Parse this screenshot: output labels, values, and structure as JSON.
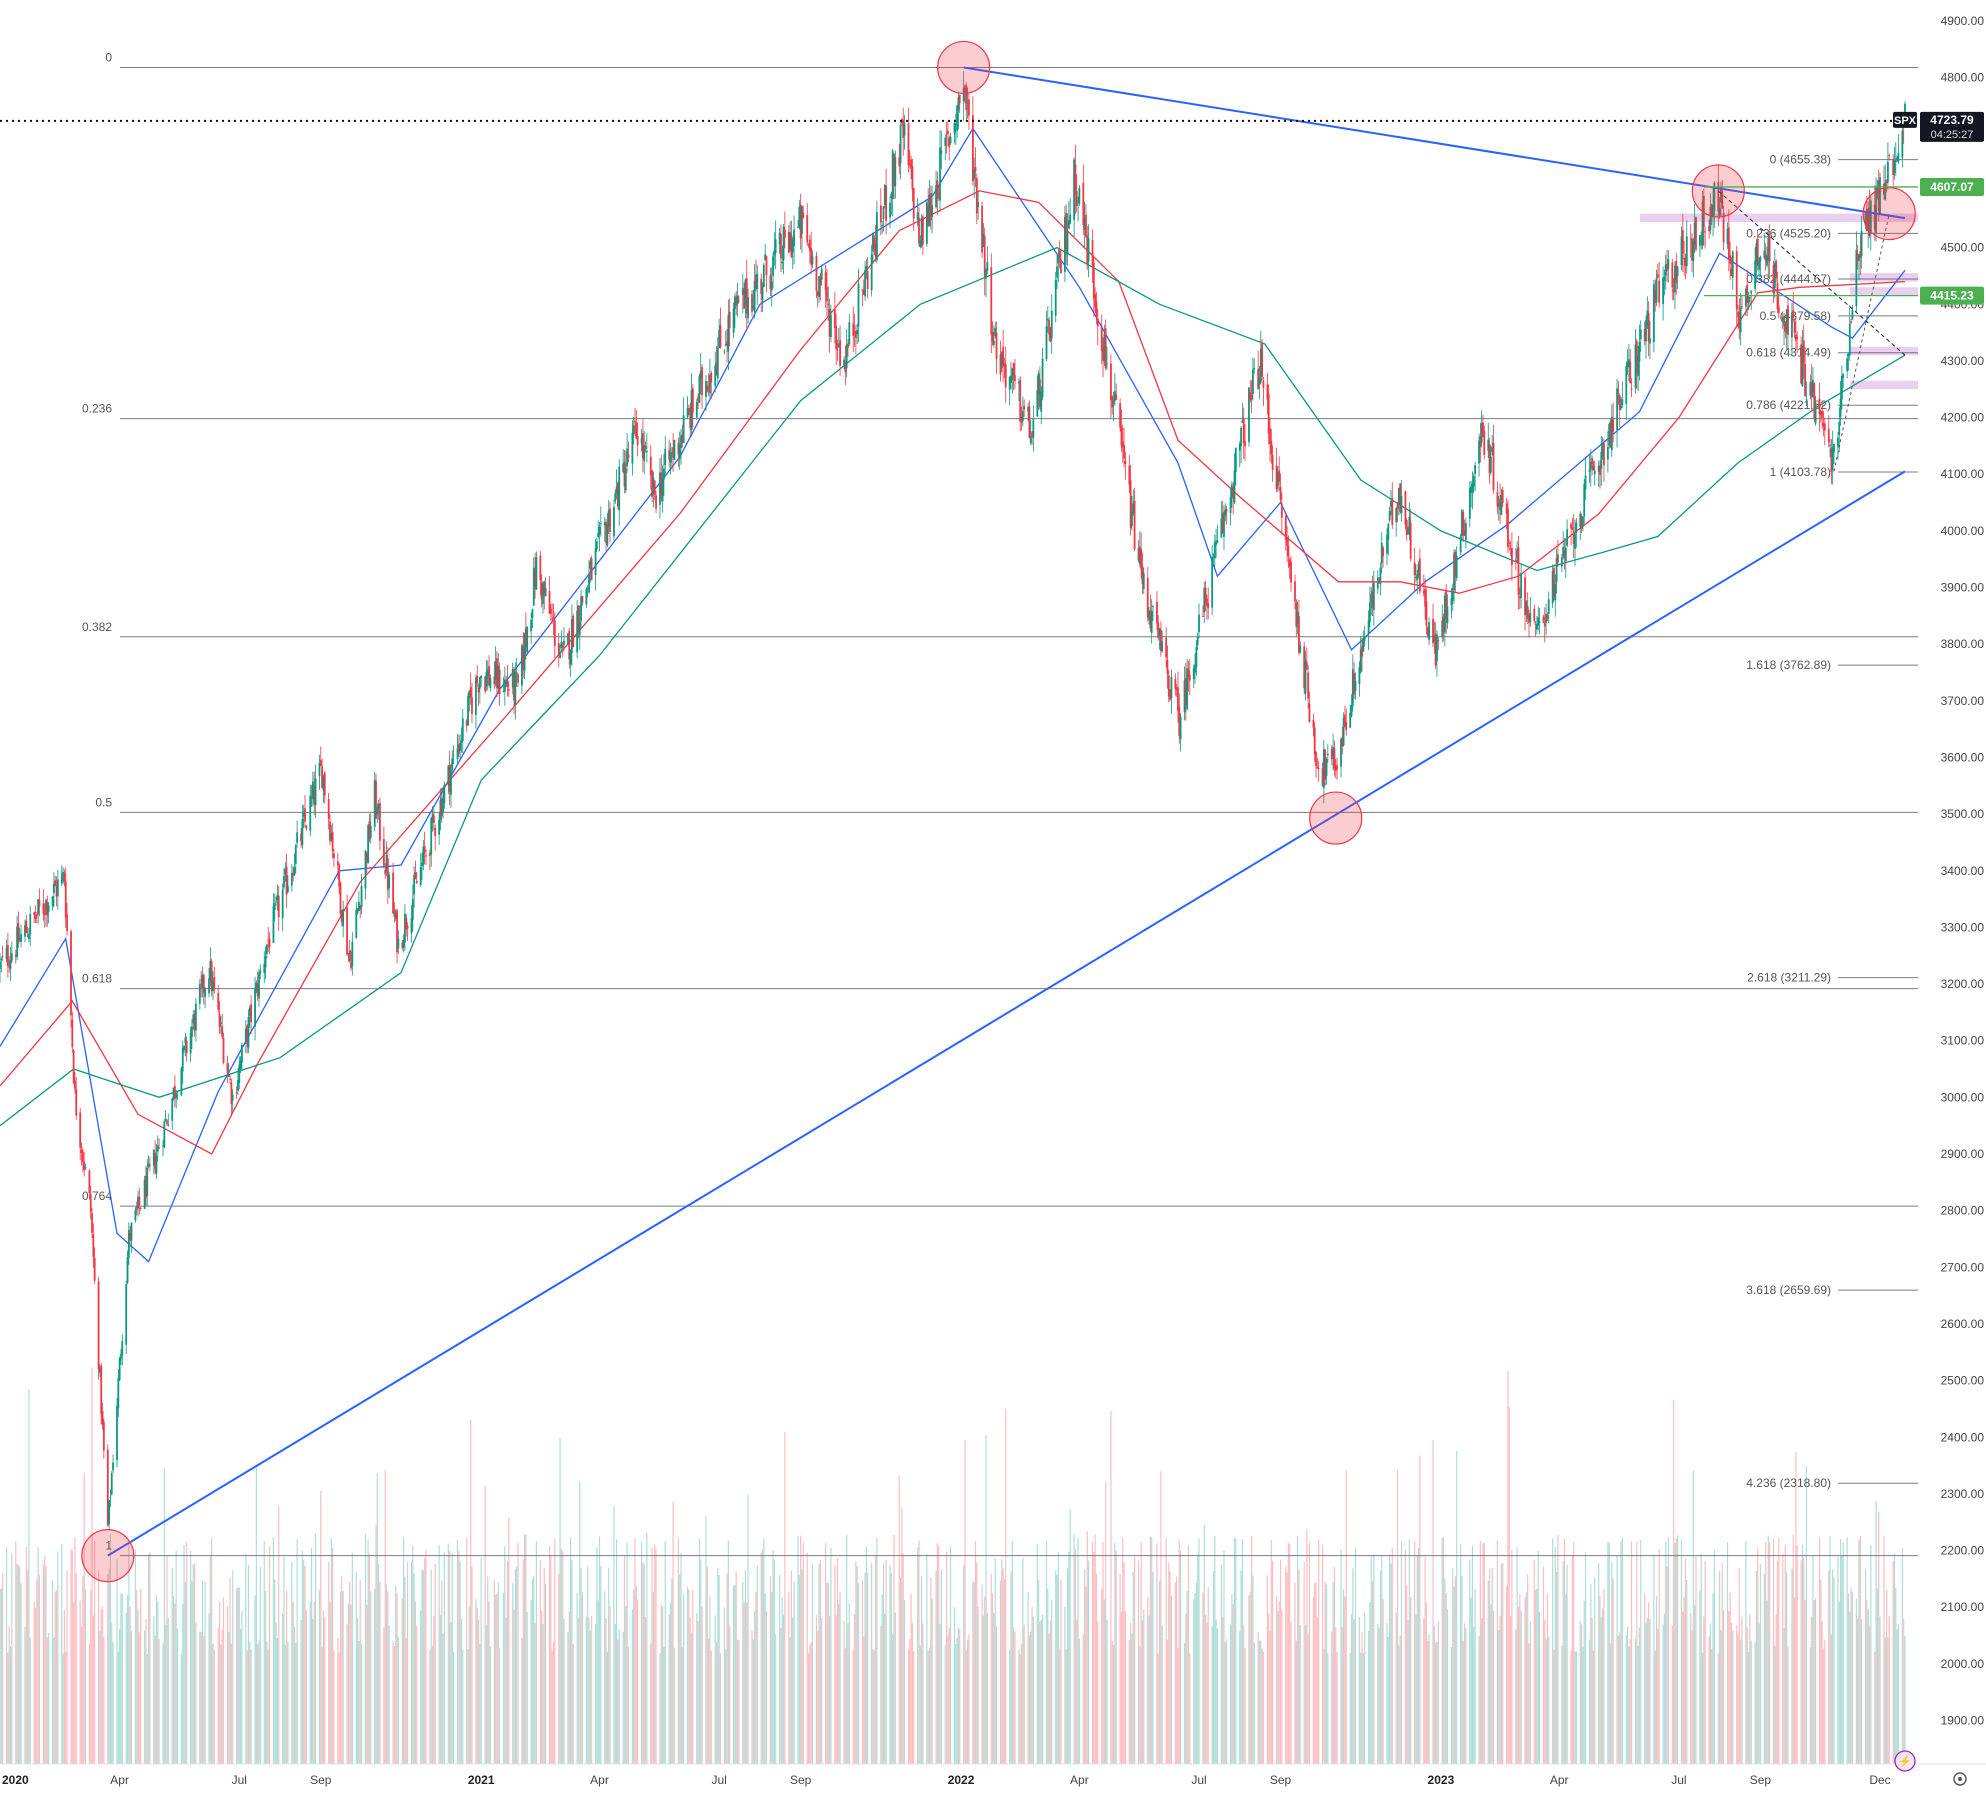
{
  "chart_data": {
    "type": "candlestick",
    "symbol": "SPX",
    "last_price": "4723.79",
    "countdown": "04:25:27",
    "ylim": [
      1830,
      4920
    ],
    "y_ticks": [
      "4900.00",
      "4800.00",
      "4700.00",
      "4600.00",
      "4500.00",
      "4400.00",
      "4300.00",
      "4200.00",
      "4100.00",
      "4000.00",
      "3900.00",
      "3800.00",
      "3700.00",
      "3600.00",
      "3500.00",
      "3400.00",
      "3300.00",
      "3200.00",
      "3100.00",
      "3000.00",
      "2900.00",
      "2800.00",
      "2700.00",
      "2600.00",
      "2500.00",
      "2400.00",
      "2300.00",
      "2200.00",
      "2100.00",
      "2000.00",
      "1900.00"
    ],
    "x_range": [
      "2020-01-01",
      "2023-12-20"
    ],
    "x_ticks": [
      {
        "label": "2020",
        "date": "2020-01-01",
        "year": true
      },
      {
        "label": "Apr",
        "date": "2020-04-01"
      },
      {
        "label": "Jul",
        "date": "2020-07-01"
      },
      {
        "label": "Sep",
        "date": "2020-09-01"
      },
      {
        "label": "2021",
        "date": "2021-01-01",
        "year": true
      },
      {
        "label": "Apr",
        "date": "2021-04-01"
      },
      {
        "label": "Jul",
        "date": "2021-07-01"
      },
      {
        "label": "Sep",
        "date": "2021-09-01"
      },
      {
        "label": "2022",
        "date": "2022-01-01",
        "year": true
      },
      {
        "label": "Apr",
        "date": "2022-04-01"
      },
      {
        "label": "Jul",
        "date": "2022-07-01"
      },
      {
        "label": "Sep",
        "date": "2022-09-01"
      },
      {
        "label": "2023",
        "date": "2023-01-01",
        "year": true
      },
      {
        "label": "Apr",
        "date": "2023-04-01"
      },
      {
        "label": "Jul",
        "date": "2023-07-01"
      },
      {
        "label": "Sep",
        "date": "2023-09-01"
      },
      {
        "label": "Dec",
        "date": "2023-12-01"
      }
    ],
    "price_path": [
      [
        "2020-01-01",
        3230
      ],
      [
        "2020-02-19",
        3390
      ],
      [
        "2020-02-27",
        3000
      ],
      [
        "2020-03-10",
        2800
      ],
      [
        "2020-03-23",
        2240
      ],
      [
        "2020-04-08",
        2750
      ],
      [
        "2020-04-29",
        2900
      ],
      [
        "2020-06-08",
        3230
      ],
      [
        "2020-06-26",
        3000
      ],
      [
        "2020-07-22",
        3270
      ],
      [
        "2020-09-02",
        3580
      ],
      [
        "2020-09-23",
        3240
      ],
      [
        "2020-10-12",
        3530
      ],
      [
        "2020-10-30",
        3270
      ],
      [
        "2020-12-31",
        3750
      ],
      [
        "2021-01-29",
        3720
      ],
      [
        "2021-02-12",
        3935
      ],
      [
        "2021-03-04",
        3770
      ],
      [
        "2021-04-30",
        4180
      ],
      [
        "2021-05-12",
        4060
      ],
      [
        "2021-07-12",
        4380
      ],
      [
        "2021-09-02",
        4540
      ],
      [
        "2021-10-04",
        4300
      ],
      [
        "2021-11-18",
        4700
      ],
      [
        "2021-12-01",
        4510
      ],
      [
        "2022-01-03",
        4790
      ],
      [
        "2022-01-27",
        4330
      ],
      [
        "2022-02-24",
        4170
      ],
      [
        "2022-03-29",
        4630
      ],
      [
        "2022-05-20",
        3900
      ],
      [
        "2022-06-16",
        3670
      ],
      [
        "2022-08-16",
        4300
      ],
      [
        "2022-09-30",
        3580
      ],
      [
        "2022-10-13",
        3590
      ],
      [
        "2022-11-30",
        4080
      ],
      [
        "2022-12-28",
        3780
      ],
      [
        "2023-02-02",
        4180
      ],
      [
        "2023-03-13",
        3810
      ],
      [
        "2023-06-16",
        4420
      ],
      [
        "2023-07-31",
        4590
      ],
      [
        "2023-08-18",
        4370
      ],
      [
        "2023-09-01",
        4520
      ],
      [
        "2023-10-27",
        4120
      ],
      [
        "2023-11-14",
        4500
      ],
      [
        "2023-12-01",
        4595
      ],
      [
        "2023-12-20",
        4723.79
      ]
    ],
    "moving_averages": [
      {
        "color": "#2962ff",
        "points": [
          [
            "2020-01-01",
            3090
          ],
          [
            "2020-02-20",
            3280
          ],
          [
            "2020-03-30",
            2760
          ],
          [
            "2020-04-23",
            2710
          ],
          [
            "2020-06-15",
            3010
          ],
          [
            "2020-09-15",
            3400
          ],
          [
            "2020-11-01",
            3410
          ],
          [
            "2021-01-15",
            3720
          ],
          [
            "2021-06-01",
            4130
          ],
          [
            "2021-08-01",
            4400
          ],
          [
            "2021-12-10",
            4590
          ],
          [
            "2022-01-10",
            4710
          ],
          [
            "2022-04-01",
            4430
          ],
          [
            "2022-06-15",
            4120
          ],
          [
            "2022-07-15",
            3920
          ],
          [
            "2022-09-01",
            4050
          ],
          [
            "2022-10-25",
            3790
          ],
          [
            "2022-12-20",
            3910
          ],
          [
            "2023-02-20",
            4010
          ],
          [
            "2023-06-01",
            4210
          ],
          [
            "2023-08-01",
            4490
          ],
          [
            "2023-10-25",
            4360
          ],
          [
            "2023-11-10",
            4340
          ],
          [
            "2023-12-20",
            4460
          ]
        ]
      },
      {
        "color": "#f23645",
        "points": [
          [
            "2020-01-01",
            3020
          ],
          [
            "2020-02-25",
            3170
          ],
          [
            "2020-04-15",
            2970
          ],
          [
            "2020-06-10",
            2900
          ],
          [
            "2020-07-15",
            3060
          ],
          [
            "2020-10-01",
            3380
          ],
          [
            "2021-01-15",
            3660
          ],
          [
            "2021-06-01",
            4030
          ],
          [
            "2021-09-01",
            4320
          ],
          [
            "2021-11-15",
            4530
          ],
          [
            "2022-01-15",
            4600
          ],
          [
            "2022-03-01",
            4580
          ],
          [
            "2022-05-01",
            4440
          ],
          [
            "2022-06-15",
            4160
          ],
          [
            "2022-08-01",
            4060
          ],
          [
            "2022-10-15",
            3910
          ],
          [
            "2022-12-01",
            3910
          ],
          [
            "2023-01-15",
            3890
          ],
          [
            "2023-03-01",
            3920
          ],
          [
            "2023-05-01",
            4030
          ],
          [
            "2023-07-01",
            4200
          ],
          [
            "2023-08-30",
            4420
          ],
          [
            "2023-10-01",
            4430
          ],
          [
            "2023-12-20",
            4440
          ]
        ]
      },
      {
        "color": "#089981",
        "points": [
          [
            "2020-01-01",
            2950
          ],
          [
            "2020-02-26",
            3050
          ],
          [
            "2020-05-01",
            3000
          ],
          [
            "2020-08-01",
            3070
          ],
          [
            "2020-11-01",
            3220
          ],
          [
            "2021-01-01",
            3560
          ],
          [
            "2021-04-01",
            3780
          ],
          [
            "2021-09-01",
            4230
          ],
          [
            "2021-12-01",
            4400
          ],
          [
            "2022-03-15",
            4500
          ],
          [
            "2022-06-01",
            4400
          ],
          [
            "2022-08-20",
            4330
          ],
          [
            "2022-11-01",
            4090
          ],
          [
            "2023-01-01",
            4000
          ],
          [
            "2023-03-15",
            3930
          ],
          [
            "2023-05-01",
            3960
          ],
          [
            "2023-06-15",
            3990
          ],
          [
            "2023-08-15",
            4120
          ],
          [
            "2023-10-15",
            4220
          ],
          [
            "2023-12-20",
            4310
          ]
        ]
      }
    ],
    "fib_retracement_left": {
      "levels": [
        {
          "label": "0",
          "price": 4818
        },
        {
          "label": "0.236",
          "price": 4198
        },
        {
          "label": "0.382",
          "price": 3813
        },
        {
          "label": "0.5",
          "price": 3503
        },
        {
          "label": "0.618",
          "price": 3192
        },
        {
          "label": "0.764",
          "price": 2808
        },
        {
          "label": "1",
          "price": 2191
        }
      ]
    },
    "fib_right": {
      "levels": [
        {
          "label": "0 (4655.38)",
          "price": 4655.38
        },
        {
          "label": "0.236 (4525.20)",
          "price": 4525.2
        },
        {
          "label": "0.382 (4444.67)",
          "price": 4444.67
        },
        {
          "label": "0.5 (4379.58)",
          "price": 4379.58
        },
        {
          "label": "0.618 (4314.49)",
          "price": 4314.49
        },
        {
          "label": "0.786 (4221.82)",
          "price": 4221.82
        },
        {
          "label": "1 (4103.78)",
          "price": 4103.78
        },
        {
          "label": "1.618 (3762.89)",
          "price": 3762.89
        },
        {
          "label": "2.618 (3211.29)",
          "price": 3211.29
        },
        {
          "label": "3.618 (2659.69)",
          "price": 2659.69
        },
        {
          "label": "4.236 (2318.80)",
          "price": 2318.8
        }
      ]
    },
    "trendlines": [
      {
        "from": [
          "2022-01-03",
          4818
        ],
        "to": [
          "2023-12-20",
          4552
        ]
      },
      {
        "from": [
          "2020-03-23",
          2191
        ],
        "to": [
          "2023-12-20",
          4105
        ]
      }
    ],
    "circles": [
      [
        "2022-01-03",
        4818
      ],
      [
        "2023-07-31",
        4600
      ],
      [
        "2023-12-08",
        4560
      ],
      [
        "2022-10-13",
        3493
      ],
      [
        "2020-03-23",
        2191
      ]
    ],
    "price_labels": [
      {
        "text": "4607.07",
        "price": 4607.07,
        "color": "#4caf50"
      },
      {
        "text": "4415.23",
        "price": 4415.23,
        "color": "#4caf50"
      }
    ],
    "dotted_line_price": 4723.79
  }
}
